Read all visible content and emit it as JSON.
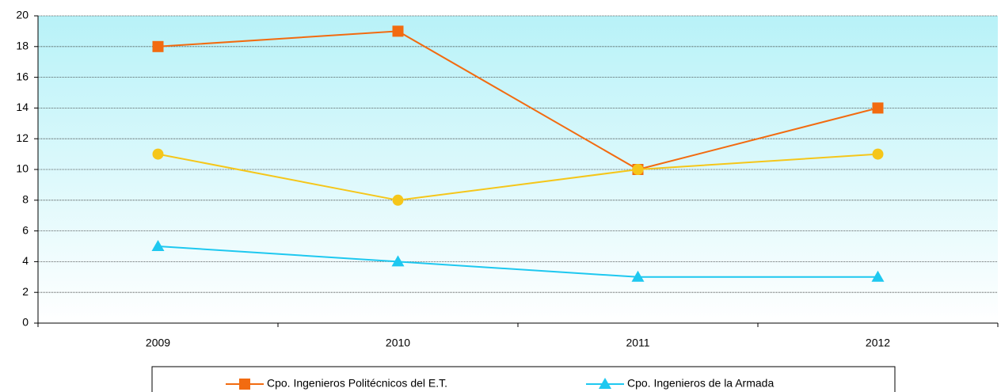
{
  "chart_data": {
    "type": "line",
    "categories": [
      "2009",
      "2010",
      "2011",
      "2012"
    ],
    "series": [
      {
        "name": "Cpo. Ingenieros Politécnicos del E.T.",
        "color": "#f26b10",
        "marker": "square",
        "values": [
          18,
          19,
          10,
          14
        ]
      },
      {
        "color": "#f5c61a",
        "marker": "circle",
        "values": [
          11,
          8,
          10,
          11
        ]
      },
      {
        "name": "Cpo. Ingenieros de la Armada",
        "color": "#1ec8f0",
        "marker": "triangle",
        "values": [
          5,
          4,
          3,
          3
        ]
      }
    ],
    "ylim": [
      0,
      20
    ],
    "yticks": [
      0,
      2,
      4,
      6,
      8,
      10,
      12,
      14,
      16,
      18,
      20
    ],
    "grid": true,
    "legend": "bottom"
  }
}
